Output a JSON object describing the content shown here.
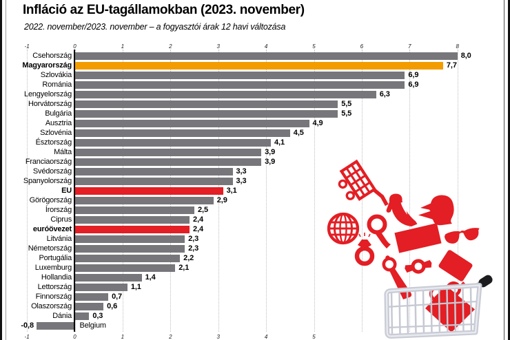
{
  "title": "Infláció az EU-tagállamokban (2023. november)",
  "subtitle": "2022. november/2023. november – a fogyasztói árak 12 havi változása",
  "colors": {
    "bar_default": "#77777b",
    "bar_hungary": "#f39c00",
    "bar_eu": "#e31e24",
    "illustration_red": "#e31e24",
    "grid": "#bdbdbd",
    "axis": "#000000",
    "cart_gray": "#ccced8"
  },
  "chart_data": {
    "type": "bar",
    "orientation": "horizontal",
    "title": "Infláció az EU-tagállamokban (2023. november)",
    "subtitle": "2022. november/2023. november – a fogyasztói árak 12 havi változása",
    "categories": [
      "Csehország",
      "Magyarország",
      "Szlovákia",
      "Románia",
      "Lengyelország",
      "Horvátország",
      "Bulgária",
      "Ausztria",
      "Szlovénia",
      "Észtország",
      "Málta",
      "Franciaország",
      "Svédország",
      "Spanyolország",
      "EU",
      "Görögország",
      "Írország",
      "Ciprus",
      "euróövezet",
      "Litvánia",
      "Németország",
      "Portugália",
      "Luxemburg",
      "Hollandia",
      "Lettország",
      "Finnország",
      "Olaszország",
      "Dánia",
      "Belgium"
    ],
    "values": [
      8.0,
      7.7,
      6.9,
      6.9,
      6.3,
      5.5,
      5.5,
      4.9,
      4.5,
      4.1,
      3.9,
      3.9,
      3.3,
      3.3,
      3.1,
      2.9,
      2.5,
      2.4,
      2.4,
      2.3,
      2.3,
      2.2,
      2.1,
      1.4,
      1.1,
      0.7,
      0.6,
      0.3,
      -0.8
    ],
    "value_labels": [
      "8,0",
      "7,7",
      "6,9",
      "6,9",
      "6,3",
      "5,5",
      "5,5",
      "4,9",
      "4,5",
      "4,1",
      "3,9",
      "3,9",
      "3,3",
      "3,3",
      "3,1",
      "2,9",
      "2,5",
      "2,4",
      "2,4",
      "2,3",
      "2,3",
      "2,2",
      "2,1",
      "1,4",
      "1,1",
      "0,7",
      "0,6",
      "0,3",
      "-0,8"
    ],
    "highlights": [
      {
        "index": 1,
        "color_key": "bar_hungary",
        "bold_label": true
      },
      {
        "index": 14,
        "color_key": "bar_eu",
        "bold_label": true
      },
      {
        "index": 18,
        "color_key": "bar_eu",
        "bold_label": true
      }
    ],
    "xlim": [
      -1,
      8
    ],
    "x_ticks_top": [
      "-1",
      "0",
      "1",
      "2",
      "3",
      "4",
      "5",
      "6",
      "7",
      "8"
    ],
    "x_ticks_bottom": [
      "-1",
      "0",
      "1",
      "2",
      "3",
      "4",
      "5"
    ],
    "grid": "dotted-vertical",
    "legend": "none"
  },
  "illustration": {
    "name": "shopping-goods-falling-into-cart",
    "items": [
      "small-cart-icon",
      "high-heel-shoe-icon",
      "head-with-cap-icon",
      "globe-icon",
      "magnifying-glass-icon",
      "diamond-ring-icon",
      "banknote-icon",
      "sunglasses-icon",
      "hand-mirror-icon",
      "wristwatch-icon",
      "wallet-icon",
      "eyeglasses-icon",
      "bag-in-cart-icon",
      "big-cart-basket-icon",
      "cart-handle-icon"
    ]
  }
}
